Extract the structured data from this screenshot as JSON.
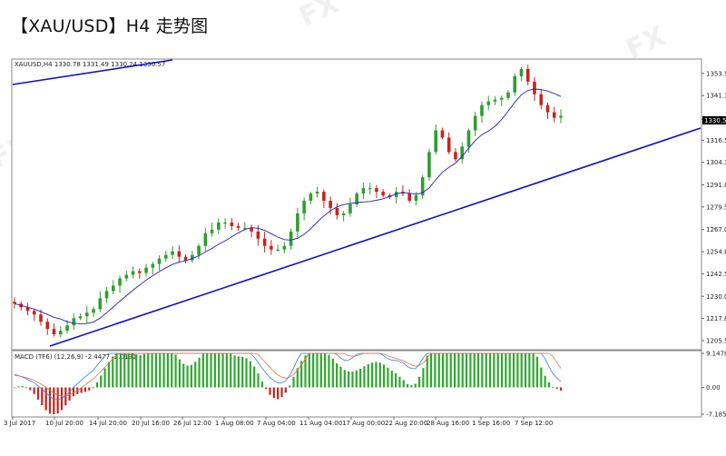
{
  "page": {
    "title": "【XAU/USD】H4 走势图",
    "accent_color": "#1010c8"
  },
  "chart_data": [
    {
      "type": "candlestick",
      "header": "XAUUSD,H4  1330.78 1331.49 1330.24 1330.57",
      "current_price_label": "1330.57",
      "y_ticks": [
        "1353.55",
        "1341.30",
        "1328.05",
        "1316.55",
        "1304.30",
        "1291.80",
        "1279.55",
        "1267.05",
        "1254.80",
        "1242.55",
        "1230.05",
        "1217.80",
        "1205.55"
      ],
      "x_ticks": [
        "3 Jul 2017",
        "10 Jul 20:00",
        "14 Jul 20:00",
        "20 Jul 16:00",
        "26 Jul 12:00",
        "1 Aug 08:00",
        "7 Aug 04:00",
        "11 Aug 04:00",
        "17 Aug 00:00",
        "22 Aug 20:00",
        "28 Aug 16:00",
        "1 Sep 16:00",
        "7 Sep 12:00"
      ],
      "ylim": [
        1201,
        1361
      ],
      "colors": {
        "up": "#2e9e2e",
        "down": "#c8231b",
        "ma": "#2020c0",
        "trendline": "#1010c8"
      },
      "close_series_approx": [
        1226,
        1224,
        1222,
        1220,
        1216,
        1212,
        1209,
        1211,
        1214,
        1218,
        1219,
        1221,
        1223,
        1229,
        1233,
        1236,
        1240,
        1242,
        1244,
        1243,
        1246,
        1248,
        1251,
        1253,
        1255,
        1252,
        1250,
        1253,
        1258,
        1265,
        1267,
        1271,
        1271,
        1269,
        1268,
        1268,
        1266,
        1262,
        1258,
        1256,
        1256,
        1258,
        1266,
        1276,
        1283,
        1287,
        1288,
        1283,
        1279,
        1275,
        1276,
        1281,
        1287,
        1290,
        1290,
        1288,
        1286,
        1285,
        1288,
        1287,
        1283,
        1286,
        1296,
        1310,
        1322,
        1318,
        1310,
        1306,
        1313,
        1322,
        1330,
        1336,
        1338,
        1339,
        1340,
        1343,
        1352,
        1356,
        1349,
        1342,
        1336,
        1332,
        1329,
        1330
      ]
    },
    {
      "type": "bar",
      "header": "MACD (TF6) (12,26,9) -2.4477 -2.0191",
      "y_ticks": [
        "9.1478",
        "0.00",
        "-7.1853"
      ],
      "ylim": [
        -7.1853,
        9.1478
      ],
      "colors": {
        "positive": "#2fa82f",
        "negative": "#c8231b",
        "signal": "#e87040",
        "macd_line": "#3a7cd8"
      }
    }
  ]
}
